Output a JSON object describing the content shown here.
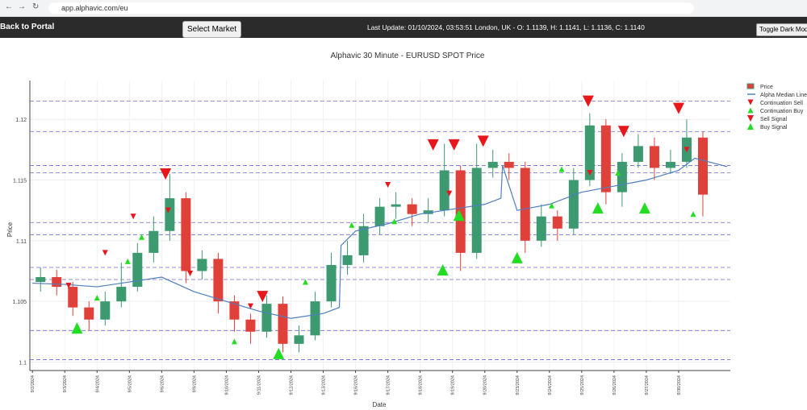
{
  "browser": {
    "url": "app.alphavic.com/eu"
  },
  "header": {
    "back": "Back to Portal",
    "select_market": "Select Market",
    "last_update": "Last Update: 01/10/2024, 03:53:51 London, UK - O: 1.1139, H: 1.1141, L: 1.1136, C: 1.1140",
    "toggle": "Toggle Dark Mode"
  },
  "chart_data": {
    "type": "candlestick",
    "title": "Alphavic 30 Minute - EURUSD SPOT Price",
    "x_label": "Date",
    "y_label": "Price",
    "xlim": [
      -0.08,
      21.6
    ],
    "ylim": [
      1.0993,
      1.1232
    ],
    "xticks": [
      {
        "value": 0,
        "label": "9/2/2024"
      },
      {
        "value": 1,
        "label": "9/3/2024"
      },
      {
        "value": 2,
        "label": "9/4/2024"
      },
      {
        "value": 3,
        "label": "9/5/2024"
      },
      {
        "value": 4,
        "label": "9/6/2024"
      },
      {
        "value": 5,
        "label": "9/9/2024"
      },
      {
        "value": 6,
        "label": "9/10/2024"
      },
      {
        "value": 7,
        "label": "9/11/2024"
      },
      {
        "value": 8,
        "label": "9/12/2024"
      },
      {
        "value": 9,
        "label": "9/13/2024"
      },
      {
        "value": 10,
        "label": "9/16/2024"
      },
      {
        "value": 11,
        "label": "9/17/2024"
      },
      {
        "value": 12,
        "label": "9/18/2024"
      },
      {
        "value": 13,
        "label": "9/19/2024"
      },
      {
        "value": 14,
        "label": "9/20/2024"
      },
      {
        "value": 15,
        "label": "9/23/2024"
      },
      {
        "value": 16,
        "label": "9/24/2024"
      },
      {
        "value": 17,
        "label": "9/25/2024"
      },
      {
        "value": 18,
        "label": "9/26/2024"
      },
      {
        "value": 19,
        "label": "9/27/2024"
      },
      {
        "value": 20,
        "label": "9/30/2024"
      }
    ],
    "yticks": [
      1.1,
      1.105,
      1.11,
      1.115,
      1.12
    ],
    "grid": true,
    "legend": "top-right",
    "levels": {
      "color": "#6b6bd6",
      "values": [
        1.1215,
        1.119,
        1.1162,
        1.1156,
        1.1115,
        1.1105,
        1.1078,
        1.1068,
        1.1026,
        1.1002
      ]
    },
    "series": [
      {
        "name": "Price",
        "type": "candlestick",
        "increasing_color": "#3d9970",
        "decreasing_color": "#e0403a",
        "x": [
          0.25,
          0.75,
          1.25,
          1.75,
          2.25,
          2.75,
          3.25,
          3.75,
          4.25,
          4.75,
          5.25,
          5.75,
          6.25,
          6.75,
          7.25,
          7.75,
          8.25,
          8.75,
          9.25,
          9.75,
          10.25,
          10.75,
          11.25,
          11.75,
          12.25,
          12.75,
          13.25,
          13.75,
          14.25,
          14.75,
          15.25,
          15.75,
          16.25,
          16.75,
          17.25,
          17.75,
          18.25,
          18.75,
          19.25,
          19.75,
          20.25,
          20.75
        ],
        "open": [
          1.1066,
          1.107,
          1.1062,
          1.1045,
          1.1035,
          1.105,
          1.1062,
          1.109,
          1.1108,
          1.1135,
          1.1075,
          1.1085,
          1.105,
          1.1035,
          1.1025,
          1.1048,
          1.1015,
          1.1022,
          1.105,
          1.108,
          1.1088,
          1.1112,
          1.1128,
          1.113,
          1.1122,
          1.1125,
          1.1158,
          1.109,
          1.116,
          1.1165,
          1.116,
          1.11,
          1.112,
          1.111,
          1.115,
          1.1195,
          1.114,
          1.1165,
          1.1178,
          1.116,
          1.1165,
          1.1185
        ],
        "high": [
          1.1078,
          1.1076,
          1.1066,
          1.105,
          1.1058,
          1.1082,
          1.1098,
          1.112,
          1.1155,
          1.114,
          1.1092,
          1.109,
          1.1055,
          1.104,
          1.1055,
          1.1054,
          1.103,
          1.1058,
          1.109,
          1.11,
          1.1122,
          1.1135,
          1.114,
          1.1135,
          1.1135,
          1.118,
          1.1162,
          1.118,
          1.1175,
          1.1172,
          1.1165,
          1.113,
          1.1125,
          1.116,
          1.1205,
          1.12,
          1.1172,
          1.1188,
          1.1185,
          1.1175,
          1.12,
          1.119
        ],
        "low": [
          1.1058,
          1.1055,
          1.1038,
          1.1026,
          1.103,
          1.1045,
          1.1058,
          1.1082,
          1.11,
          1.1065,
          1.1068,
          1.104,
          1.1025,
          1.1015,
          1.102,
          1.1008,
          1.1008,
          1.1018,
          1.1045,
          1.1072,
          1.1082,
          1.1105,
          1.1118,
          1.1112,
          1.1115,
          1.112,
          1.1075,
          1.1085,
          1.1152,
          1.115,
          1.109,
          1.1095,
          1.11,
          1.1105,
          1.1145,
          1.113,
          1.1128,
          1.116,
          1.115,
          1.1155,
          1.116,
          1.112
        ],
        "close": [
          1.107,
          1.1062,
          1.1045,
          1.1035,
          1.105,
          1.1062,
          1.109,
          1.1108,
          1.1135,
          1.1075,
          1.1085,
          1.105,
          1.1035,
          1.1025,
          1.1048,
          1.1015,
          1.1022,
          1.105,
          1.108,
          1.1088,
          1.1112,
          1.1128,
          1.113,
          1.1122,
          1.1125,
          1.1158,
          1.109,
          1.116,
          1.1165,
          1.116,
          1.11,
          1.112,
          1.111,
          1.115,
          1.1195,
          1.114,
          1.1165,
          1.1178,
          1.116,
          1.1165,
          1.1185,
          1.1138
        ]
      },
      {
        "name": "Alpha Median Line",
        "type": "line",
        "color": "#4f7fbf",
        "x": [
          0,
          1,
          2,
          3,
          4,
          5,
          6,
          7,
          8,
          9,
          9.5,
          9.55,
          10,
          11,
          12,
          13,
          14,
          14.5,
          14.55,
          15,
          16,
          17,
          18,
          19,
          20,
          20.5,
          21.5
        ],
        "values": [
          1.1065,
          1.1064,
          1.1062,
          1.1066,
          1.107,
          1.1058,
          1.105,
          1.1042,
          1.1036,
          1.104,
          1.1045,
          1.1096,
          1.1108,
          1.1114,
          1.1122,
          1.1126,
          1.113,
          1.1135,
          1.1162,
          1.1125,
          1.113,
          1.114,
          1.1145,
          1.115,
          1.1158,
          1.1168,
          1.1161
        ]
      },
      {
        "name": "Continuation Sell",
        "type": "scatter",
        "marker": "triangle-down",
        "size": 7,
        "color": "#e8151b",
        "x": [
          1.12,
          2.25,
          3.12,
          4.2,
          4.88,
          6.75,
          11.0,
          12.9,
          17.25,
          20.25
        ],
        "values": [
          1.1063,
          1.109,
          1.112,
          1.1125,
          1.1073,
          1.1046,
          1.1146,
          1.1139,
          1.1156,
          1.1175
        ]
      },
      {
        "name": "Continuation Buy",
        "type": "scatter",
        "marker": "triangle-up",
        "size": 7,
        "color": "#22dd22",
        "x": [
          2.0,
          2.95,
          3.38,
          6.25,
          8.45,
          9.88,
          11.2,
          16.07,
          16.38,
          18.12,
          20.45
        ],
        "values": [
          1.1053,
          1.1083,
          1.1103,
          1.1017,
          1.1066,
          1.1113,
          1.1116,
          1.1129,
          1.1159,
          1.1156,
          1.1122
        ]
      },
      {
        "name": "Sell Signal",
        "type": "scatter",
        "marker": "triangle-down",
        "size": 14,
        "color": "#e8151b",
        "x": [
          4.12,
          7.12,
          12.4,
          13.05,
          13.95,
          17.2,
          18.3,
          20.0
        ],
        "values": [
          1.1155,
          1.1054,
          1.1179,
          1.1179,
          1.1182,
          1.1215,
          1.119,
          1.1209
        ]
      },
      {
        "name": "Buy Signal",
        "type": "scatter",
        "marker": "triangle-up",
        "size": 14,
        "color": "#22dd22",
        "x": [
          1.38,
          7.62,
          12.7,
          13.2,
          15.0,
          17.5,
          18.95
        ],
        "values": [
          1.1028,
          1.1007,
          1.1076,
          1.1121,
          1.1086,
          1.1127,
          1.1127
        ]
      }
    ]
  }
}
